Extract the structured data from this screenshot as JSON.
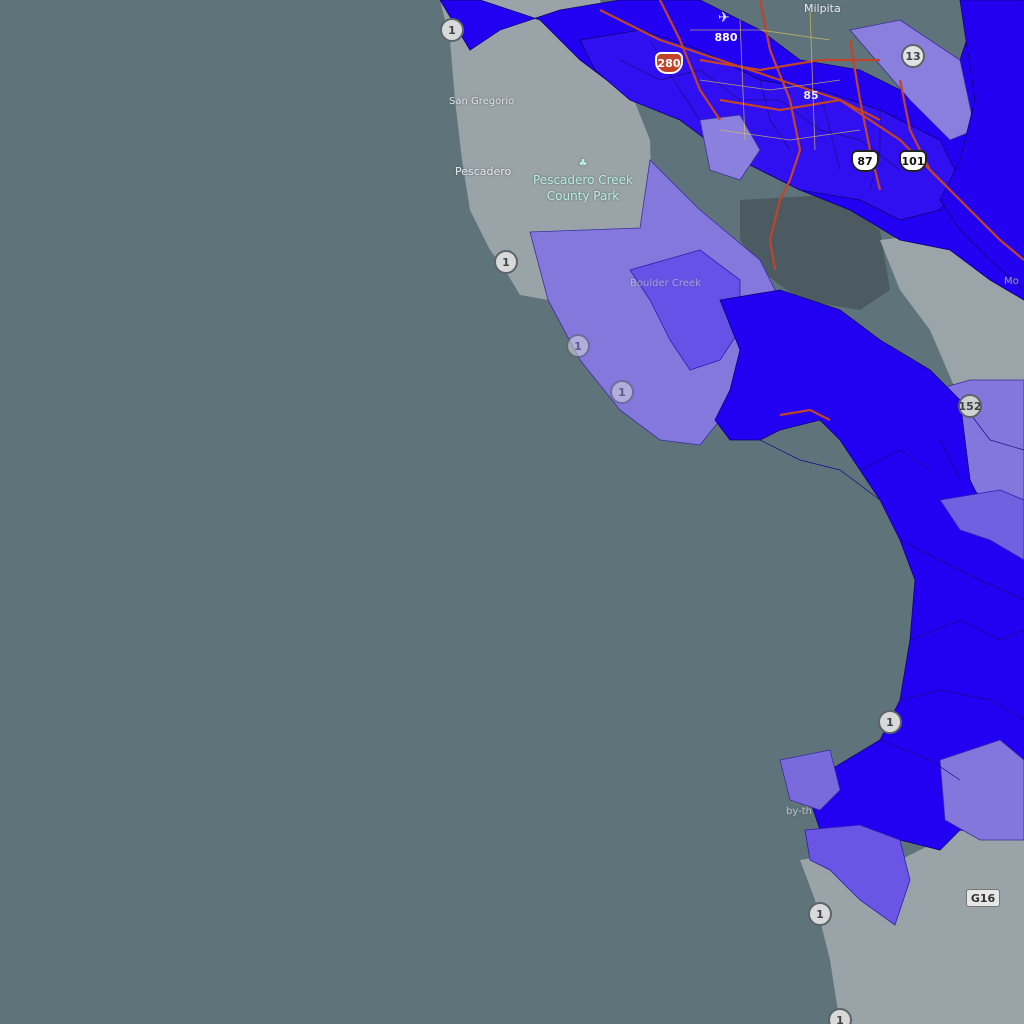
{
  "map": {
    "colors": {
      "ocean": "#5f737b",
      "land": "#9aa3a8",
      "dark_land": "#4a5a60",
      "tract_high": "#2200f2",
      "tract_mid": "#5d45e8",
      "tract_low": "#8478dc",
      "road": "#c0442a",
      "park_label": "#b9f0dc"
    },
    "places": {
      "milpitas": "Milpita",
      "san_gregorio": "San Gregorio",
      "pescadero": "Pescadero",
      "park_line1": "Pescadero Creek",
      "park_line2": "County Park",
      "boulder_creek": "Boulder Creek",
      "morgan_hill": "Mo",
      "by_the_sea": "by-th"
    },
    "shields": {
      "route_1": "1",
      "us_101": "101",
      "route_87": "87",
      "route_85": "85",
      "route_880": "880",
      "route_280": "280",
      "route_13": "13",
      "route_152": "152",
      "county_g16": "G16"
    }
  }
}
